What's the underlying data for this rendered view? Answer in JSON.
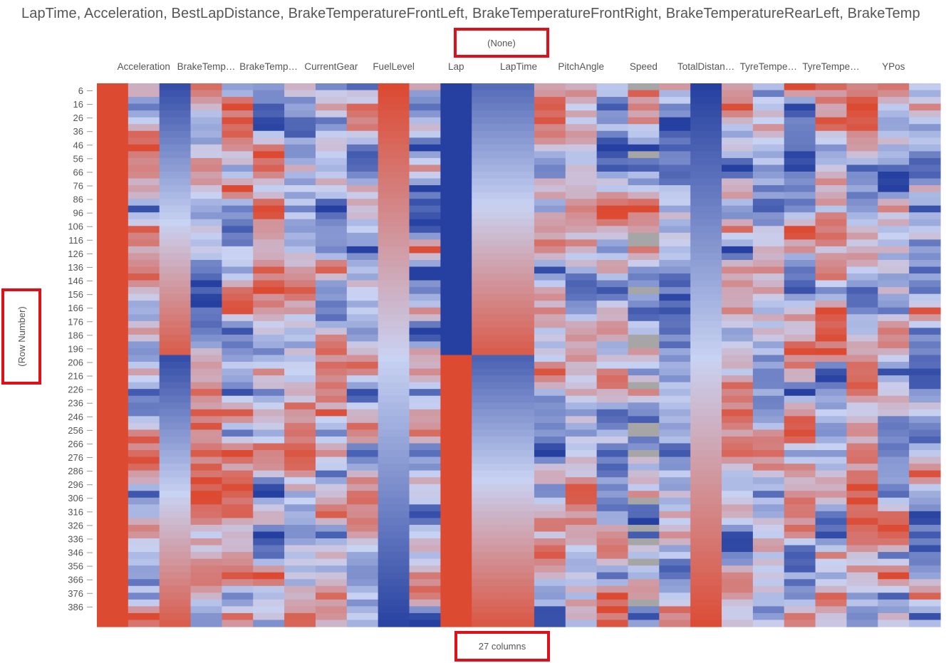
{
  "title": "LapTime, Acceleration, BestLapDistance, BrakeTemperatureFrontLeft, BrakeTemperatureFrontRight, BrakeTemperatureRearLeft, BrakeTemp",
  "top_axis_label": "(None)",
  "left_axis_label": "(Row Number)",
  "bottom_axis_label": "27 columns",
  "colors": {
    "low": "#2540a0",
    "mid": "#c8d2f2",
    "high": "#dc4a32",
    "missing": "#a6a6a6",
    "highlight_box": "#e0101a"
  },
  "chart_data": {
    "type": "heatmap",
    "title": "LapTime, Acceleration, BestLapDistance, BrakeTemperatureFrontLeft, BrakeTemperatureFrontRight, BrakeTemperatureRearLeft, BrakeTemp",
    "xlabel": "(None)",
    "ylabel": "(Row Number)",
    "column_count_label": "27 columns",
    "column_labels": [
      {
        "col": 1,
        "text": "Acceleration"
      },
      {
        "col": 3,
        "text": "BrakeTemp…"
      },
      {
        "col": 5,
        "text": "BrakeTemp…"
      },
      {
        "col": 7,
        "text": "CurrentGear"
      },
      {
        "col": 9,
        "text": "FuelLevel"
      },
      {
        "col": 11,
        "text": "Lap"
      },
      {
        "col": 13,
        "text": "LapTime"
      },
      {
        "col": 15,
        "text": "PitchAngle"
      },
      {
        "col": 17,
        "text": "Speed"
      },
      {
        "col": 19,
        "text": "TotalDistan…"
      },
      {
        "col": 21,
        "text": "TyreTempe…"
      },
      {
        "col": 23,
        "text": "TyreTempe…"
      },
      {
        "col": 25,
        "text": "YPos"
      }
    ],
    "row_ticks": [
      6,
      16,
      26,
      36,
      46,
      56,
      66,
      76,
      86,
      96,
      106,
      116,
      126,
      136,
      146,
      156,
      166,
      176,
      186,
      196,
      206,
      216,
      226,
      236,
      246,
      256,
      266,
      276,
      286,
      296,
      306,
      316,
      326,
      336,
      346,
      356,
      366,
      376,
      386
    ],
    "row_range": [
      1,
      400
    ],
    "columns": 27,
    "color_scale": [
      "low",
      "mid",
      "high"
    ],
    "grid": false
  }
}
